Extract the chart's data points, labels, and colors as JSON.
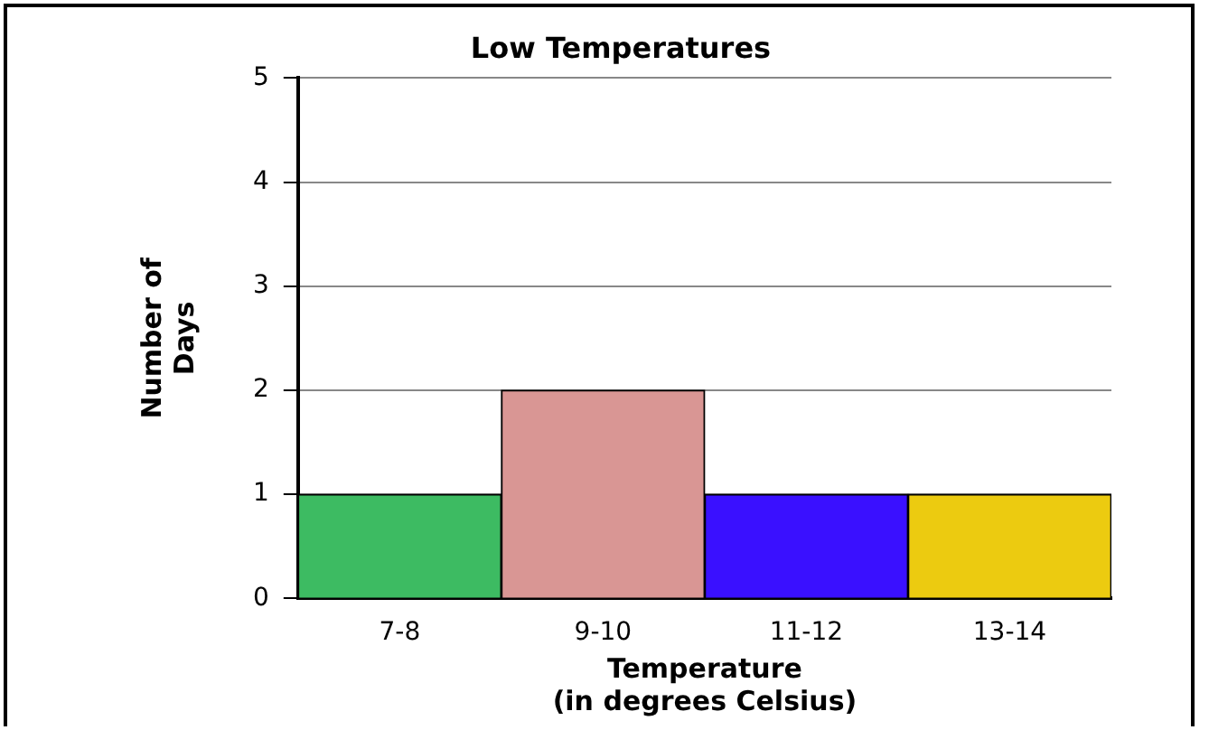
{
  "chart_data": {
    "type": "bar",
    "title": "Low Temperatures",
    "xlabel": "Temperature\n(in degrees Celsius)",
    "ylabel": "Number of\nDays",
    "categories": [
      "7-8",
      "9-10",
      "11-12",
      "13-14"
    ],
    "values": [
      1,
      2,
      1,
      1
    ],
    "colors": [
      "#3dbb62",
      "#d99694",
      "#3a10ff",
      "#eccb10"
    ],
    "ylim": [
      0,
      5
    ],
    "yticks": [
      0,
      1,
      2,
      3,
      4,
      5
    ],
    "grid": "y",
    "legend": false
  }
}
